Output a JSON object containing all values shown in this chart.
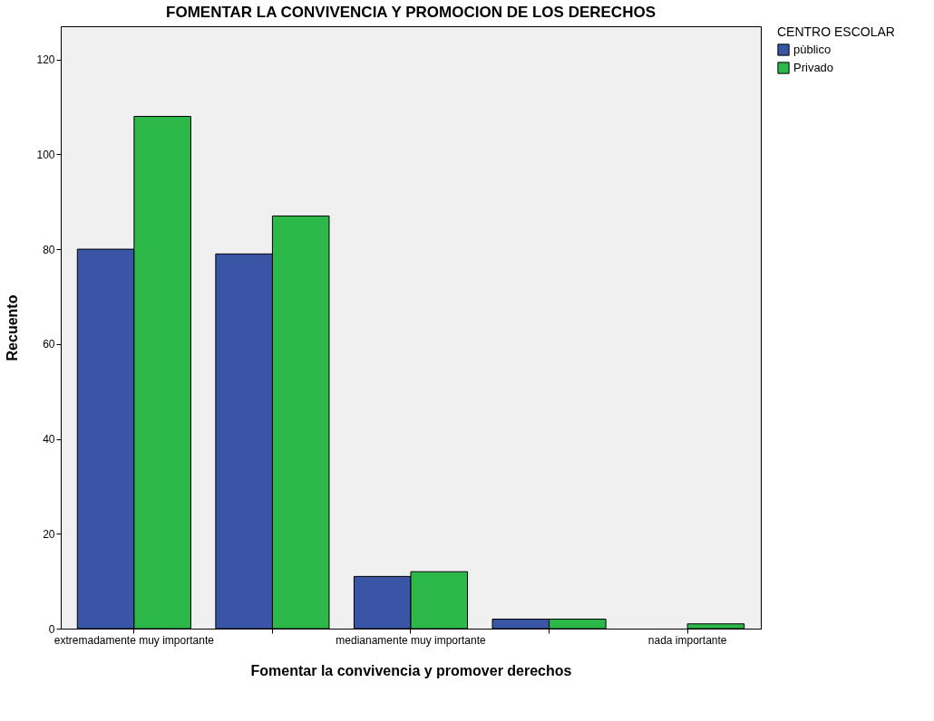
{
  "chart_data": {
    "type": "bar",
    "title": "FOMENTAR LA CONVIVENCIA Y PROMOCION DE LOS DERECHOS",
    "xlabel": "Fomentar la convivencia y promover derechos",
    "ylabel": "Recuento",
    "legend_title": "CENTRO ESCOLAR",
    "categories": [
      "extremadamente muy importante",
      null,
      "medianamente muy importante",
      null,
      "nada importante"
    ],
    "series": [
      {
        "name": "pùblico",
        "color": "#3a55a6",
        "values": [
          80,
          79,
          11,
          2,
          null
        ]
      },
      {
        "name": "Privado",
        "color": "#2db84a",
        "values": [
          108,
          87,
          12,
          2,
          1
        ]
      }
    ],
    "ylim": [
      0,
      127
    ],
    "yticks": [
      0,
      20,
      40,
      60,
      80,
      100,
      120
    ],
    "grid": false,
    "legend": "right"
  }
}
